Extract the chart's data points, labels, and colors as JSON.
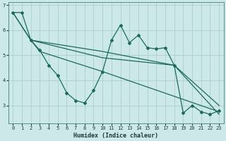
{
  "xlabel": "Humidex (Indice chaleur)",
  "bg_color": "#cce8e8",
  "grid_color": "#aacece",
  "line_color": "#1a6b5a",
  "xlim": [
    -0.5,
    23.5
  ],
  "ylim": [
    2.3,
    7.1
  ],
  "yticks": [
    3,
    4,
    5,
    6,
    7
  ],
  "xticks": [
    0,
    1,
    2,
    3,
    4,
    5,
    6,
    7,
    8,
    9,
    10,
    11,
    12,
    13,
    14,
    15,
    16,
    17,
    18,
    19,
    20,
    21,
    22,
    23
  ],
  "line1_x": [
    0,
    1,
    2,
    3,
    4,
    5,
    6,
    7,
    8,
    9,
    10,
    11,
    12,
    13,
    14,
    15,
    16,
    17,
    18,
    19,
    20,
    21,
    22,
    23
  ],
  "line1_y": [
    6.7,
    6.7,
    5.6,
    5.2,
    4.6,
    4.2,
    3.5,
    3.2,
    3.1,
    3.6,
    4.35,
    5.6,
    6.2,
    5.5,
    5.8,
    5.3,
    5.25,
    5.3,
    4.6,
    2.7,
    3.0,
    2.75,
    2.65,
    2.8
  ],
  "line2_x": [
    2,
    3,
    10,
    23
  ],
  "line2_y": [
    5.6,
    5.15,
    4.35,
    2.75
  ],
  "line3_x": [
    0,
    2,
    10,
    18,
    23
  ],
  "line3_y": [
    6.7,
    5.6,
    5.15,
    4.6,
    3.0
  ],
  "line4_x": [
    0,
    2,
    10,
    18,
    23
  ],
  "line4_y": [
    6.7,
    5.6,
    4.9,
    4.6,
    2.65
  ]
}
